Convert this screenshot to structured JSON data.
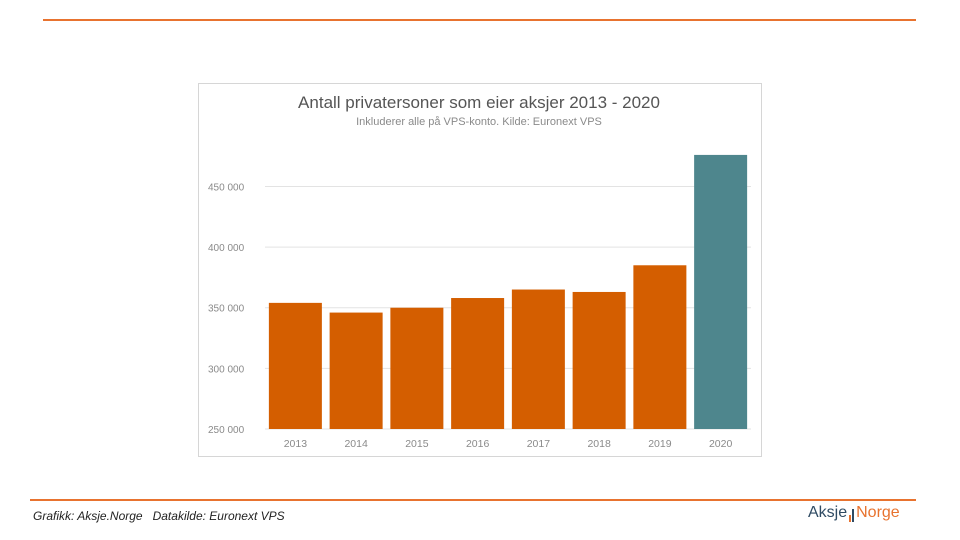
{
  "footer": {
    "credit": "Grafikk: Aksje.Norge   Datakilde: Euronext VPS"
  },
  "logo": {
    "part1": "Aksje",
    "part2": "Norge"
  },
  "colors": {
    "accent_orange": "#d45e00",
    "highlight_teal": "#4e868d",
    "rule_orange": "#e8732f",
    "logo_navy": "#2f4b63"
  },
  "chart_data": {
    "type": "bar",
    "title": "Antall privatersoner som eier aksjer 2013 - 2020",
    "subtitle": "Inkluderer alle på VPS-konto. Kilde: Euronext VPS",
    "categories": [
      "2013",
      "2014",
      "2015",
      "2016",
      "2017",
      "2018",
      "2019",
      "2020"
    ],
    "values": [
      354000,
      346000,
      350000,
      358000,
      365000,
      363000,
      385000,
      476000
    ],
    "highlight_index": 7,
    "ylim": [
      250000,
      485000
    ],
    "yticks": [
      250000,
      300000,
      350000,
      400000,
      450000
    ],
    "ytick_labels": [
      "250 000",
      "300 000",
      "350 000",
      "400 000",
      "450 000"
    ],
    "xlabel": "",
    "ylabel": "",
    "grid": true
  }
}
